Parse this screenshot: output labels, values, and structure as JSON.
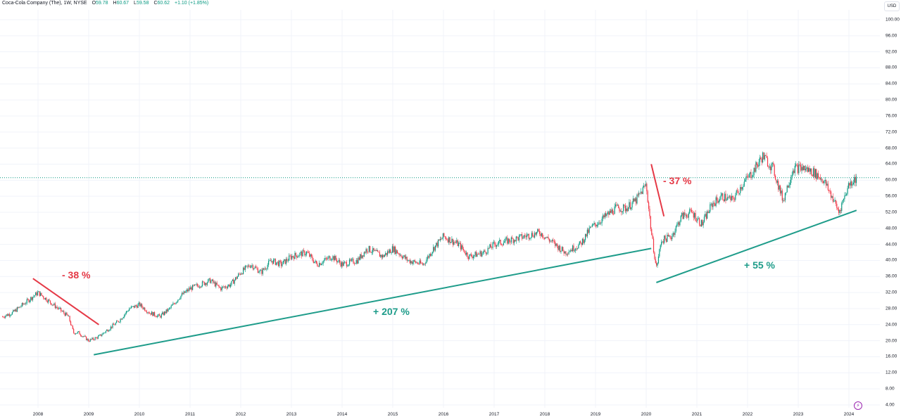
{
  "legend": {
    "symbol": "Coca-Cola Company (The), 1W, NYSE",
    "open_label": "O",
    "open": "59.78",
    "high_label": "H",
    "high": "60.67",
    "low_label": "L",
    "low": "59.58",
    "close_label": "C",
    "close": "60.62",
    "change": "+1.10 (+1.85%)"
  },
  "currency": "USD",
  "colors": {
    "up": "#089981",
    "down": "#f23645",
    "trend_up": "#1e9c8a",
    "trend_down": "#e53946",
    "grid": "#f0f3fa",
    "last_price_line": "#089981"
  },
  "event_icon": "lightning-icon",
  "y_axis": [
    "100.00",
    "96.00",
    "92.00",
    "88.00",
    "84.00",
    "80.00",
    "76.00",
    "72.00",
    "68.00",
    "64.00",
    "60.00",
    "56.00",
    "52.00",
    "48.00",
    "44.00",
    "40.00",
    "36.00",
    "32.00",
    "28.00",
    "24.00",
    "20.00",
    "16.00",
    "12.00",
    "8.00",
    "4.00"
  ],
  "x_axis": [
    "2008",
    "2009",
    "2010",
    "2011",
    "2012",
    "2013",
    "2014",
    "2015",
    "2016",
    "2017",
    "2018",
    "2019",
    "2020",
    "2021",
    "2022",
    "2023",
    "2024"
  ],
  "annotations": [
    {
      "text": "- 38 %",
      "color": "#e53946"
    },
    {
      "text": "+ 207 %",
      "color": "#1e9c8a"
    },
    {
      "text": "- 37 %",
      "color": "#e53946"
    },
    {
      "text": "+ 55 %",
      "color": "#1e9c8a"
    }
  ],
  "chart_data": {
    "type": "candlestick",
    "title": "Coca-Cola Company (The), 1W, NYSE",
    "xlabel": "",
    "ylabel": "USD",
    "ylim": [
      4,
      100
    ],
    "grid": true,
    "last_price": 60.62,
    "x": [
      2007.3,
      2007.5,
      2007.7,
      2007.9,
      2008.0,
      2008.2,
      2008.4,
      2008.6,
      2008.7,
      2008.8,
      2009.0,
      2009.2,
      2009.4,
      2009.6,
      2009.8,
      2010.0,
      2010.2,
      2010.4,
      2010.6,
      2010.8,
      2011.0,
      2011.2,
      2011.4,
      2011.6,
      2011.8,
      2012.0,
      2012.2,
      2012.4,
      2012.6,
      2012.8,
      2013.0,
      2013.3,
      2013.5,
      2013.8,
      2014.0,
      2014.3,
      2014.5,
      2014.8,
      2015.0,
      2015.3,
      2015.6,
      2015.8,
      2016.0,
      2016.3,
      2016.5,
      2016.8,
      2017.0,
      2017.3,
      2017.6,
      2017.9,
      2018.1,
      2018.4,
      2018.7,
      2018.9,
      2019.1,
      2019.4,
      2019.6,
      2019.8,
      2020.0,
      2020.1,
      2020.2,
      2020.3,
      2020.5,
      2020.7,
      2020.9,
      2021.1,
      2021.3,
      2021.5,
      2021.7,
      2021.9,
      2022.1,
      2022.3,
      2022.5,
      2022.7,
      2022.9,
      2023.1,
      2023.3,
      2023.5,
      2023.7,
      2023.8,
      2024.0,
      2024.15
    ],
    "values": [
      26,
      27,
      29,
      31,
      32,
      30,
      28,
      26,
      22,
      22,
      20,
      21,
      23,
      25,
      28,
      29,
      27,
      26,
      28,
      31,
      33,
      34,
      35,
      33,
      34,
      37,
      39,
      37,
      40,
      39,
      41,
      42,
      39,
      41,
      39,
      40,
      43,
      41,
      43,
      40,
      39,
      43,
      46,
      44,
      41,
      42,
      44,
      45,
      46,
      47,
      45,
      42,
      44,
      48,
      50,
      53,
      53,
      55,
      59,
      47,
      38,
      45,
      46,
      51,
      52,
      49,
      54,
      56,
      55,
      59,
      62,
      66,
      63,
      55,
      63,
      63,
      62,
      60,
      55,
      52,
      59,
      60.62
    ],
    "series_note": "approximate weekly close path read from chart",
    "trendlines": [
      {
        "label": "- 38 %",
        "from": [
          2007.9,
          35.5
        ],
        "to": [
          2009.2,
          24
        ]
      },
      {
        "label": "+ 207 %",
        "from": [
          2009.1,
          16.5
        ],
        "to": [
          2020.1,
          43
        ]
      },
      {
        "label": "- 37 %",
        "from": [
          2020.1,
          64
        ],
        "to": [
          2020.35,
          51
        ]
      },
      {
        "label": "+ 55 %",
        "from": [
          2020.2,
          34.5
        ],
        "to": [
          2024.15,
          52.5
        ]
      }
    ]
  }
}
